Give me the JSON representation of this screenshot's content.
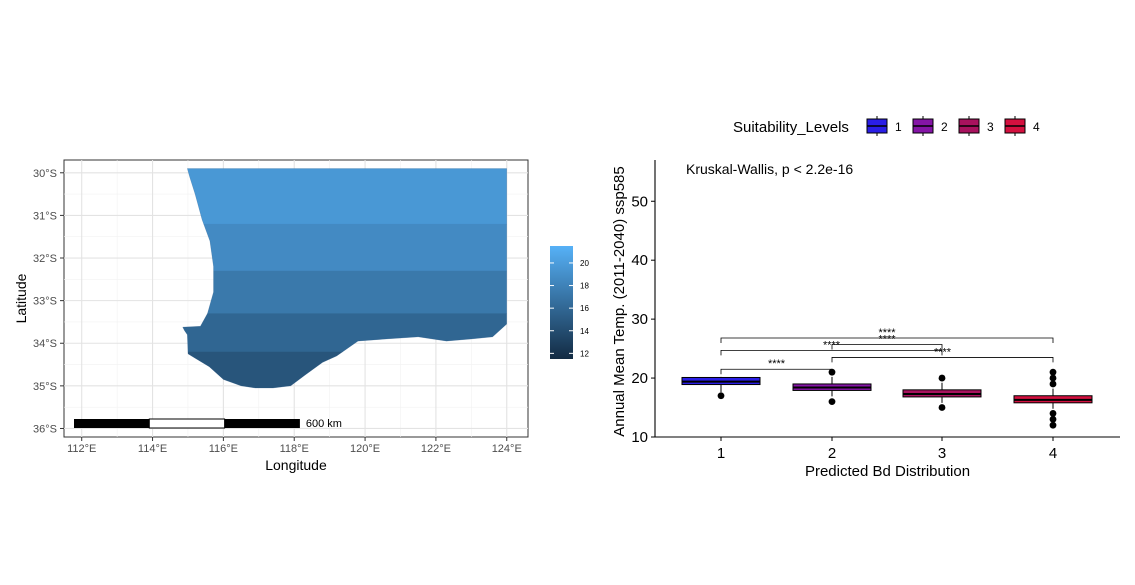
{
  "chart_data": [
    {
      "type": "heatmap",
      "xlabel": "Longitude",
      "ylabel": "Latitude",
      "x_ticks": [
        "112°E",
        "114°E",
        "116°E",
        "118°E",
        "120°E",
        "122°E",
        "124°E"
      ],
      "y_ticks": [
        "30°S",
        "31°S",
        "32°S",
        "33°S",
        "34°S",
        "35°S",
        "36°S"
      ],
      "xlim": [
        111.5,
        124.6
      ],
      "ylim": [
        -36.2,
        -29.7
      ],
      "colorbar": {
        "ticks": [
          "12",
          "14",
          "16",
          "18",
          "20"
        ],
        "range": [
          11.5,
          21.5
        ],
        "low_color": "#132b43",
        "high_color": "#56b1f7"
      },
      "scalebar": {
        "label": "600 km"
      },
      "grid": true,
      "region_fill_bands": [
        {
          "lat_from": -29.9,
          "lat_to": -31.2,
          "value": 19.6
        },
        {
          "lat_from": -31.2,
          "lat_to": -32.3,
          "value": 18.6
        },
        {
          "lat_from": -32.3,
          "lat_to": -33.3,
          "value": 17.3
        },
        {
          "lat_from": -33.3,
          "lat_to": -34.2,
          "value": 15.9
        },
        {
          "lat_from": -34.2,
          "lat_to": -35.2,
          "value": 14.6
        }
      ]
    },
    {
      "type": "box",
      "title": "",
      "xlabel": "Predicted Bd Distribution",
      "ylabel": "Annual Mean Temp. (2011-2040) ssp585",
      "categories": [
        "1",
        "2",
        "3",
        "4"
      ],
      "ylim": [
        10,
        57
      ],
      "y_ticks": [
        10,
        20,
        30,
        40,
        50
      ],
      "legend": {
        "title": "Suitability_Levels",
        "position": "top",
        "entries": [
          "1",
          "2",
          "3",
          "4"
        ]
      },
      "colors": [
        "#2a1ee6",
        "#8515a6",
        "#a8125e",
        "#d4103f"
      ],
      "annotation": "Kruskal-Wallis, p < 2.2e-16",
      "series": [
        {
          "category": "1",
          "q1": 18.9,
          "median": 19.4,
          "q3": 20.1,
          "whisker_low": 17.6,
          "whisker_high": 20.2,
          "outliers": [
            17.0
          ]
        },
        {
          "category": "2",
          "q1": 17.9,
          "median": 18.4,
          "q3": 19.0,
          "whisker_low": 16.9,
          "whisker_high": 20.2,
          "outliers": [
            16.0,
            21.0
          ]
        },
        {
          "category": "3",
          "q1": 16.8,
          "median": 17.3,
          "q3": 18.0,
          "whisker_low": 15.8,
          "whisker_high": 19.2,
          "outliers": [
            15.0,
            20.0
          ]
        },
        {
          "category": "4",
          "q1": 15.8,
          "median": 16.3,
          "q3": 17.0,
          "whisker_low": 14.8,
          "whisker_high": 18.2,
          "outliers": [
            12.0,
            13.0,
            14.0,
            19.0,
            20.0,
            21.0
          ]
        }
      ],
      "comparisons": [
        {
          "from": "1",
          "to": "2",
          "label": "****",
          "y": 21.5
        },
        {
          "from": "2",
          "to": "4",
          "label": "****",
          "y": 23.5
        },
        {
          "from": "1",
          "to": "3",
          "label": "****",
          "y": 24.7
        },
        {
          "from": "2",
          "to": "3",
          "label": "****",
          "y": 25.7
        },
        {
          "from": "1",
          "to": "4",
          "label": "****",
          "y": 26.8
        }
      ]
    }
  ]
}
